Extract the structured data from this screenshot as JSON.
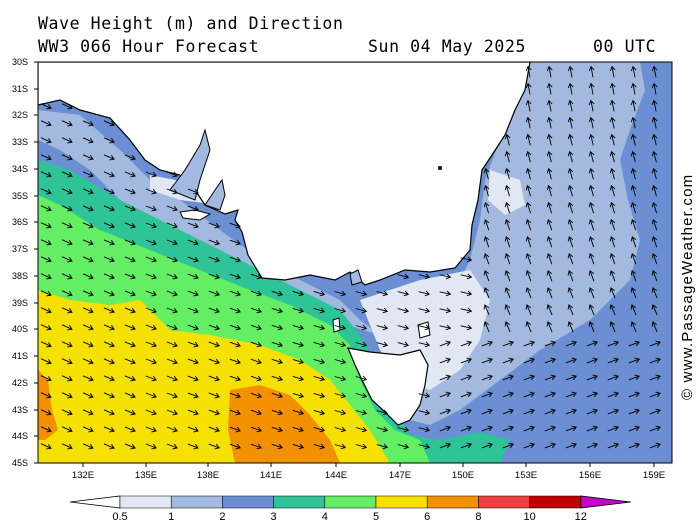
{
  "header": {
    "title_line1": "Wave Height (m) and Direction",
    "title_line2": "WW3 066 Hour Forecast",
    "date": "Sun 04 May 2025",
    "time": "00 UTC"
  },
  "credit": "© www.PassageWeather.com",
  "map": {
    "region": "Bass Strait / Southeast Australia",
    "lat_labels": [
      "30S",
      "31S",
      "32S",
      "33S",
      "34S",
      "35S",
      "36S",
      "37S",
      "38S",
      "39S",
      "40S",
      "41S",
      "42S",
      "43S",
      "44S",
      "45S"
    ],
    "lon_labels": [
      "132E",
      "135E",
      "138E",
      "141E",
      "144E",
      "147E",
      "150E",
      "153E",
      "156E",
      "159E"
    ],
    "arrow_color": "#000000",
    "land_color": "#ffffff"
  },
  "legend": {
    "labels": [
      "0.5",
      "1",
      "2",
      "3",
      "4",
      "5",
      "6",
      "8",
      "10",
      "12"
    ],
    "colors": [
      "#e1e8f4",
      "#a3b9df",
      "#6b8fd2",
      "#2ec498",
      "#63ee63",
      "#f6e000",
      "#f39000",
      "#ee4040",
      "#c00000",
      "#c800c8"
    ]
  }
}
